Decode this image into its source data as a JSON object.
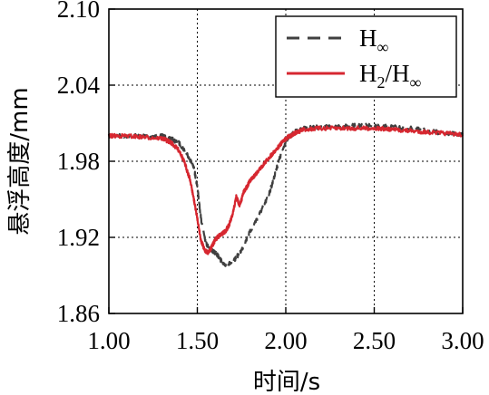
{
  "chart_data": {
    "type": "line",
    "xlabel": "时间/s",
    "ylabel": "悬浮高度/mm",
    "xlim": [
      1.0,
      3.0
    ],
    "ylim": [
      1.86,
      2.1
    ],
    "xticks": [
      1.0,
      1.5,
      2.0,
      2.5,
      3.0
    ],
    "xtick_labels": [
      "1.00",
      "1.50",
      "2.00",
      "2.50",
      "3.00"
    ],
    "yticks": [
      1.86,
      1.92,
      1.98,
      2.04,
      2.1
    ],
    "ytick_labels": [
      "1.86",
      "1.92",
      "1.98",
      "2.04",
      "2.10"
    ],
    "grid": true,
    "legend_position": "top-right",
    "series": [
      {
        "name": "H∞",
        "label_main": "H",
        "label_sub": "∞",
        "color": "#404040",
        "style": "dashed",
        "x": [
          1.0,
          1.1,
          1.2,
          1.3,
          1.35,
          1.4,
          1.45,
          1.48,
          1.5,
          1.52,
          1.55,
          1.58,
          1.6,
          1.62,
          1.65,
          1.7,
          1.75,
          1.8,
          1.85,
          1.9,
          1.93,
          1.96,
          2.0,
          2.05,
          2.1,
          2.2,
          2.3,
          2.4,
          2.5,
          2.6,
          2.7,
          2.8,
          2.9,
          3.0
        ],
        "y": [
          2.0,
          2.0,
          2.0,
          2.0,
          1.998,
          1.994,
          1.984,
          1.975,
          1.96,
          1.935,
          1.915,
          1.91,
          1.908,
          1.905,
          1.898,
          1.9,
          1.91,
          1.925,
          1.938,
          1.952,
          1.965,
          1.98,
          1.996,
          2.003,
          2.006,
          2.007,
          2.008,
          2.008,
          2.008,
          2.007,
          2.006,
          2.004,
          2.002,
          2.001
        ]
      },
      {
        "name": "H2/H∞",
        "label_main": "H",
        "label_sub": "2",
        "label_main2": "/H",
        "label_sub2": "∞",
        "color": "#d62730",
        "style": "solid",
        "x": [
          1.0,
          1.1,
          1.2,
          1.3,
          1.35,
          1.4,
          1.43,
          1.46,
          1.48,
          1.5,
          1.52,
          1.54,
          1.56,
          1.58,
          1.6,
          1.63,
          1.66,
          1.68,
          1.7,
          1.72,
          1.74,
          1.76,
          1.78,
          1.8,
          1.83,
          1.86,
          1.9,
          1.95,
          2.0,
          2.05,
          2.1,
          2.2,
          2.3,
          2.4,
          2.5,
          2.6,
          2.7,
          2.8,
          2.9,
          3.0
        ],
        "y": [
          2.0,
          2.0,
          1.999,
          1.998,
          1.995,
          1.988,
          1.978,
          1.965,
          1.95,
          1.935,
          1.918,
          1.91,
          1.908,
          1.912,
          1.918,
          1.922,
          1.925,
          1.93,
          1.938,
          1.952,
          1.945,
          1.955,
          1.96,
          1.965,
          1.97,
          1.975,
          1.982,
          1.99,
          1.998,
          2.002,
          2.005,
          2.006,
          2.006,
          2.006,
          2.006,
          2.005,
          2.004,
          2.003,
          2.002,
          2.001
        ]
      }
    ]
  }
}
